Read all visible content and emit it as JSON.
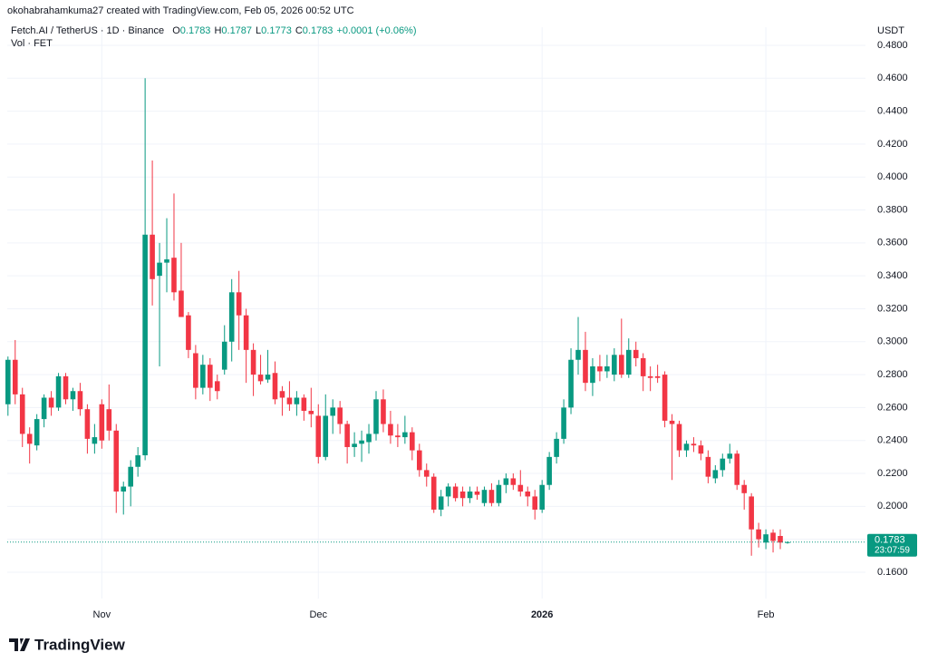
{
  "chart_data": {
    "type": "candlestick",
    "attribution": "okohabrahamkuma27 created with TradingView.com, Feb 05, 2026 00:52 UTC",
    "title": "Fetch.AI / TetherUS · 1D · Binance",
    "ohlc_letters": [
      "O",
      "H",
      "L",
      "C"
    ],
    "change": "+0.0001 (+0.06%)",
    "subtitle": "Vol · FET",
    "currency": "USDT",
    "countdown": "23:07:59",
    "up_color": "#089981",
    "down_color": "#f23645",
    "grid": true,
    "xlim": [
      -0.1,
      118.8
    ],
    "xticks": [
      {
        "value": 13,
        "label": "Nov"
      },
      {
        "value": 43,
        "label": "Dec"
      },
      {
        "value": 74,
        "label": "2026"
      },
      {
        "value": 105,
        "label": "Feb"
      }
    ],
    "ylim": [
      0.144,
      0.491
    ],
    "yticks": [
      {
        "value": 0.16,
        "label": "0.1600"
      },
      {
        "value": 0.18,
        "label": "0.1800"
      },
      {
        "value": 0.2,
        "label": "0.2000"
      },
      {
        "value": 0.22,
        "label": "0.2200"
      },
      {
        "value": 0.24,
        "label": "0.2400"
      },
      {
        "value": 0.26,
        "label": "0.2600"
      },
      {
        "value": 0.28,
        "label": "0.2800"
      },
      {
        "value": 0.3,
        "label": "0.3000"
      },
      {
        "value": 0.32,
        "label": "0.3200"
      },
      {
        "value": 0.34,
        "label": "0.3400"
      },
      {
        "value": 0.36,
        "label": "0.3600"
      },
      {
        "value": 0.38,
        "label": "0.3800"
      },
      {
        "value": 0.4,
        "label": "0.4000"
      },
      {
        "value": 0.42,
        "label": "0.4200"
      },
      {
        "value": 0.44,
        "label": "0.4400"
      },
      {
        "value": 0.46,
        "label": "0.4600"
      },
      {
        "value": 0.48,
        "label": "0.4800"
      }
    ],
    "open": [
      0.262,
      0.289,
      0.268,
      0.244,
      0.237,
      0.253,
      0.266,
      0.26,
      0.279,
      0.265,
      0.27,
      0.259,
      0.238,
      0.262,
      0.259,
      0.246,
      0.209,
      0.212,
      0.224,
      0.231,
      0.365,
      0.34,
      0.348,
      0.351,
      0.331,
      0.316,
      0.293,
      0.272,
      0.286,
      0.276,
      0.283,
      0.3,
      0.33,
      0.316,
      0.295,
      0.28,
      0.277,
      0.281,
      0.27,
      0.266,
      0.262,
      0.266,
      0.258,
      0.255,
      0.23,
      0.255,
      0.26,
      0.25,
      0.236,
      0.238,
      0.239,
      0.244,
      0.265,
      0.25,
      0.243,
      0.242,
      0.245,
      0.234,
      0.222,
      0.218,
      0.198,
      0.206,
      0.212,
      0.209,
      0.205,
      0.209,
      0.202,
      0.21,
      0.202,
      0.213,
      0.217,
      0.213,
      0.209,
      0.206,
      0.198,
      0.213,
      0.23,
      0.241,
      0.26,
      0.289,
      0.295,
      0.275,
      0.285,
      0.282,
      0.28,
      0.292,
      0.28,
      0.295,
      0.29,
      0.279,
      0.279,
      0.28,
      0.252,
      0.25,
      0.234,
      0.238,
      0.237,
      0.23,
      0.217,
      0.222,
      0.229,
      0.232,
      0.213,
      0.206,
      0.186,
      0.178,
      0.184,
      0.182,
      0.1783
    ],
    "high": [
      0.291,
      0.301,
      0.272,
      0.248,
      0.256,
      0.268,
      0.27,
      0.281,
      0.281,
      0.272,
      0.275,
      0.262,
      0.25,
      0.265,
      0.274,
      0.25,
      0.215,
      0.228,
      0.236,
      0.46,
      0.41,
      0.36,
      0.375,
      0.39,
      0.36,
      0.318,
      0.298,
      0.292,
      0.29,
      0.28,
      0.31,
      0.338,
      0.343,
      0.32,
      0.299,
      0.292,
      0.295,
      0.288,
      0.273,
      0.276,
      0.27,
      0.268,
      0.272,
      0.262,
      0.268,
      0.265,
      0.264,
      0.252,
      0.245,
      0.246,
      0.25,
      0.27,
      0.271,
      0.258,
      0.25,
      0.255,
      0.248,
      0.238,
      0.226,
      0.22,
      0.21,
      0.214,
      0.214,
      0.212,
      0.212,
      0.212,
      0.212,
      0.214,
      0.216,
      0.22,
      0.22,
      0.222,
      0.212,
      0.21,
      0.216,
      0.233,
      0.245,
      0.265,
      0.296,
      0.315,
      0.306,
      0.29,
      0.292,
      0.292,
      0.296,
      0.314,
      0.302,
      0.3,
      0.293,
      0.285,
      0.286,
      0.282,
      0.256,
      0.252,
      0.24,
      0.242,
      0.24,
      0.234,
      0.225,
      0.232,
      0.238,
      0.234,
      0.216,
      0.208,
      0.19,
      0.186,
      0.186,
      0.186,
      0.1787
    ],
    "low": [
      0.255,
      0.262,
      0.236,
      0.226,
      0.234,
      0.248,
      0.255,
      0.258,
      0.262,
      0.258,
      0.255,
      0.232,
      0.232,
      0.235,
      0.24,
      0.196,
      0.195,
      0.2,
      0.218,
      0.228,
      0.322,
      0.285,
      0.33,
      0.325,
      0.315,
      0.29,
      0.265,
      0.268,
      0.264,
      0.265,
      0.28,
      0.288,
      0.295,
      0.275,
      0.267,
      0.274,
      0.275,
      0.262,
      0.255,
      0.258,
      0.255,
      0.252,
      0.248,
      0.226,
      0.228,
      0.244,
      0.244,
      0.226,
      0.23,
      0.227,
      0.232,
      0.24,
      0.245,
      0.238,
      0.236,
      0.238,
      0.228,
      0.218,
      0.212,
      0.196,
      0.194,
      0.2,
      0.203,
      0.2,
      0.202,
      0.204,
      0.2,
      0.2,
      0.2,
      0.208,
      0.21,
      0.206,
      0.2,
      0.192,
      0.196,
      0.21,
      0.226,
      0.238,
      0.256,
      0.28,
      0.27,
      0.267,
      0.276,
      0.278,
      0.276,
      0.278,
      0.278,
      0.285,
      0.27,
      0.27,
      0.275,
      0.248,
      0.216,
      0.23,
      0.23,
      0.233,
      0.228,
      0.214,
      0.214,
      0.218,
      0.226,
      0.21,
      0.198,
      0.17,
      0.175,
      0.174,
      0.172,
      0.174,
      0.1773
    ],
    "close": [
      0.289,
      0.268,
      0.244,
      0.238,
      0.253,
      0.266,
      0.26,
      0.279,
      0.265,
      0.27,
      0.259,
      0.241,
      0.242,
      0.24,
      0.246,
      0.209,
      0.212,
      0.224,
      0.231,
      0.365,
      0.338,
      0.348,
      0.35,
      0.33,
      0.315,
      0.295,
      0.272,
      0.286,
      0.272,
      0.27,
      0.3,
      0.33,
      0.316,
      0.295,
      0.28,
      0.276,
      0.28,
      0.265,
      0.266,
      0.262,
      0.266,
      0.258,
      0.256,
      0.23,
      0.255,
      0.26,
      0.25,
      0.236,
      0.238,
      0.24,
      0.244,
      0.265,
      0.25,
      0.243,
      0.242,
      0.245,
      0.234,
      0.222,
      0.218,
      0.198,
      0.206,
      0.212,
      0.205,
      0.205,
      0.209,
      0.207,
      0.21,
      0.202,
      0.213,
      0.217,
      0.213,
      0.209,
      0.206,
      0.198,
      0.213,
      0.23,
      0.241,
      0.26,
      0.289,
      0.295,
      0.275,
      0.285,
      0.282,
      0.285,
      0.292,
      0.28,
      0.295,
      0.29,
      0.279,
      0.278,
      0.278,
      0.252,
      0.25,
      0.234,
      0.238,
      0.237,
      0.232,
      0.218,
      0.222,
      0.229,
      0.232,
      0.213,
      0.208,
      0.186,
      0.18,
      0.183,
      0.179,
      0.178,
      0.1783
    ]
  },
  "brand": "TradingView"
}
